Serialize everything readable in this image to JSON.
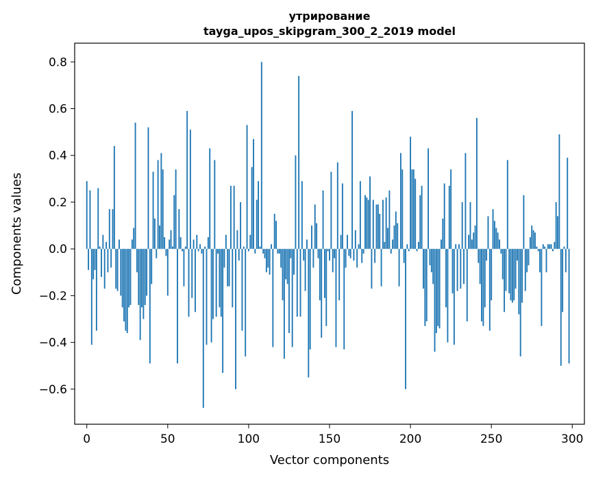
{
  "chart_data": {
    "type": "bar",
    "title": "утрирование",
    "subtitle": "tayga_upos_skipgram_300_2_2019 model",
    "xlabel": "Vector components",
    "ylabel": "Components values",
    "xlim": [
      -7.5,
      307.5
    ],
    "ylim": [
      -0.75,
      0.88
    ],
    "xticks": [
      0,
      50,
      100,
      150,
      200,
      250,
      300
    ],
    "xtick_labels": [
      "0",
      "50",
      "100",
      "150",
      "200",
      "250",
      "300"
    ],
    "yticks": [
      -0.6,
      -0.4,
      -0.2,
      0.0,
      0.2,
      0.4,
      0.6,
      0.8
    ],
    "ytick_labels": [
      "−0.6",
      "−0.4",
      "−0.2",
      "0.0",
      "0.2",
      "0.4",
      "0.6",
      "0.8"
    ],
    "bar_color": "#1f77b4",
    "x_start": 0,
    "values": [
      0.29,
      -0.09,
      0.25,
      -0.41,
      -0.13,
      -0.09,
      -0.35,
      0.26,
      0.01,
      -0.12,
      0.06,
      -0.17,
      0.03,
      -0.1,
      0.17,
      -0.08,
      0.17,
      0.44,
      -0.17,
      -0.18,
      0.04,
      -0.2,
      -0.25,
      -0.31,
      -0.35,
      -0.36,
      -0.25,
      -0.24,
      0.04,
      0.09,
      0.54,
      -0.1,
      -0.24,
      -0.39,
      -0.25,
      -0.3,
      -0.24,
      -0.2,
      0.52,
      -0.49,
      -0.15,
      0.33,
      0.13,
      -0.04,
      0.38,
      0.1,
      0.41,
      0.34,
      0.05,
      -0.03,
      -0.2,
      0.04,
      0.08,
      0.01,
      0.23,
      0.34,
      -0.49,
      0.17,
      0.05,
      -0.01,
      -0.16,
      0.01,
      0.59,
      -0.29,
      0.51,
      -0.21,
      0.04,
      -0.27,
      0.06,
      -0.01,
      0.02,
      -0.02,
      -0.68,
      0.01,
      -0.41,
      0.05,
      0.43,
      -0.4,
      -0.3,
      0.38,
      -0.29,
      -0.02,
      -0.25,
      -0.29,
      -0.53,
      -0.08,
      0.06,
      -0.16,
      -0.16,
      0.27,
      -0.25,
      0.27,
      -0.6,
      0.08,
      -0.05,
      0.2,
      -0.35,
      0.01,
      -0.46,
      0.53,
      -0.01,
      0.06,
      0.35,
      0.47,
      -0.02,
      0.21,
      0.29,
      0.01,
      0.8,
      -0.02,
      -0.04,
      -0.1,
      -0.08,
      -0.11,
      0.02,
      -0.42,
      0.15,
      0.12,
      -0.02,
      -0.02,
      -0.08,
      -0.22,
      -0.47,
      -0.13,
      -0.15,
      -0.36,
      -0.04,
      -0.42,
      -0.11,
      0.4,
      -0.29,
      0.74,
      -0.29,
      0.29,
      -0.05,
      -0.18,
      0.04,
      -0.55,
      -0.43,
      0.1,
      -0.08,
      0.19,
      0.11,
      -0.04,
      -0.22,
      -0.38,
      0.25,
      -0.21,
      -0.33,
      -0.01,
      -0.05,
      0.33,
      -0.1,
      -0.04,
      -0.42,
      0.37,
      -0.22,
      0.06,
      0.28,
      -0.43,
      -0.08,
      0.06,
      -0.03,
      -0.04,
      0.59,
      -0.05,
      0.08,
      -0.08,
      0.02,
      0.29,
      -0.06,
      -0.02,
      0.23,
      0.22,
      0.21,
      0.31,
      -0.17,
      0.21,
      -0.06,
      0.19,
      0.19,
      0.15,
      -0.16,
      0.21,
      0.03,
      0.22,
      0.09,
      0.25,
      -0.02,
      0.04,
      0.1,
      0.16,
      0.11,
      -0.16,
      0.41,
      0.34,
      -0.06,
      -0.6,
      0.02,
      -0.01,
      0.48,
      0.34,
      0.34,
      0.3,
      -0.01,
      0.03,
      0.23,
      0.27,
      -0.17,
      -0.33,
      -0.31,
      0.43,
      -0.07,
      -0.1,
      -0.15,
      -0.44,
      -0.36,
      -0.33,
      -0.34,
      0.04,
      0.13,
      0.28,
      -0.25,
      -0.4,
      0.27,
      0.34,
      -0.19,
      -0.41,
      0.02,
      -0.18,
      0.02,
      -0.17,
      0.2,
      -0.15,
      0.41,
      -0.31,
      0.06,
      0.2,
      0.04,
      0.07,
      0.1,
      0.56,
      -0.06,
      -0.15,
      -0.31,
      -0.33,
      -0.25,
      -0.05,
      0.14,
      -0.35,
      -0.22,
      0.17,
      0.12,
      0.09,
      0.07,
      0.04,
      -0.02,
      -0.13,
      -0.27,
      -0.18,
      0.38,
      -0.19,
      -0.22,
      -0.23,
      -0.22,
      -0.17,
      -0.05,
      -0.28,
      -0.46,
      -0.23,
      0.23,
      -0.18,
      -0.1,
      -0.07,
      0.05,
      0.1,
      0.08,
      0.07,
      0.01,
      -0.01,
      -0.1,
      -0.33,
      0.02,
      0.01,
      -0.1,
      0.02,
      0.02,
      0.02,
      -0.01,
      0.03,
      0.2,
      0.14,
      0.49,
      -0.5,
      -0.27,
      0.01,
      -0.1,
      0.39,
      -0.49
    ]
  }
}
